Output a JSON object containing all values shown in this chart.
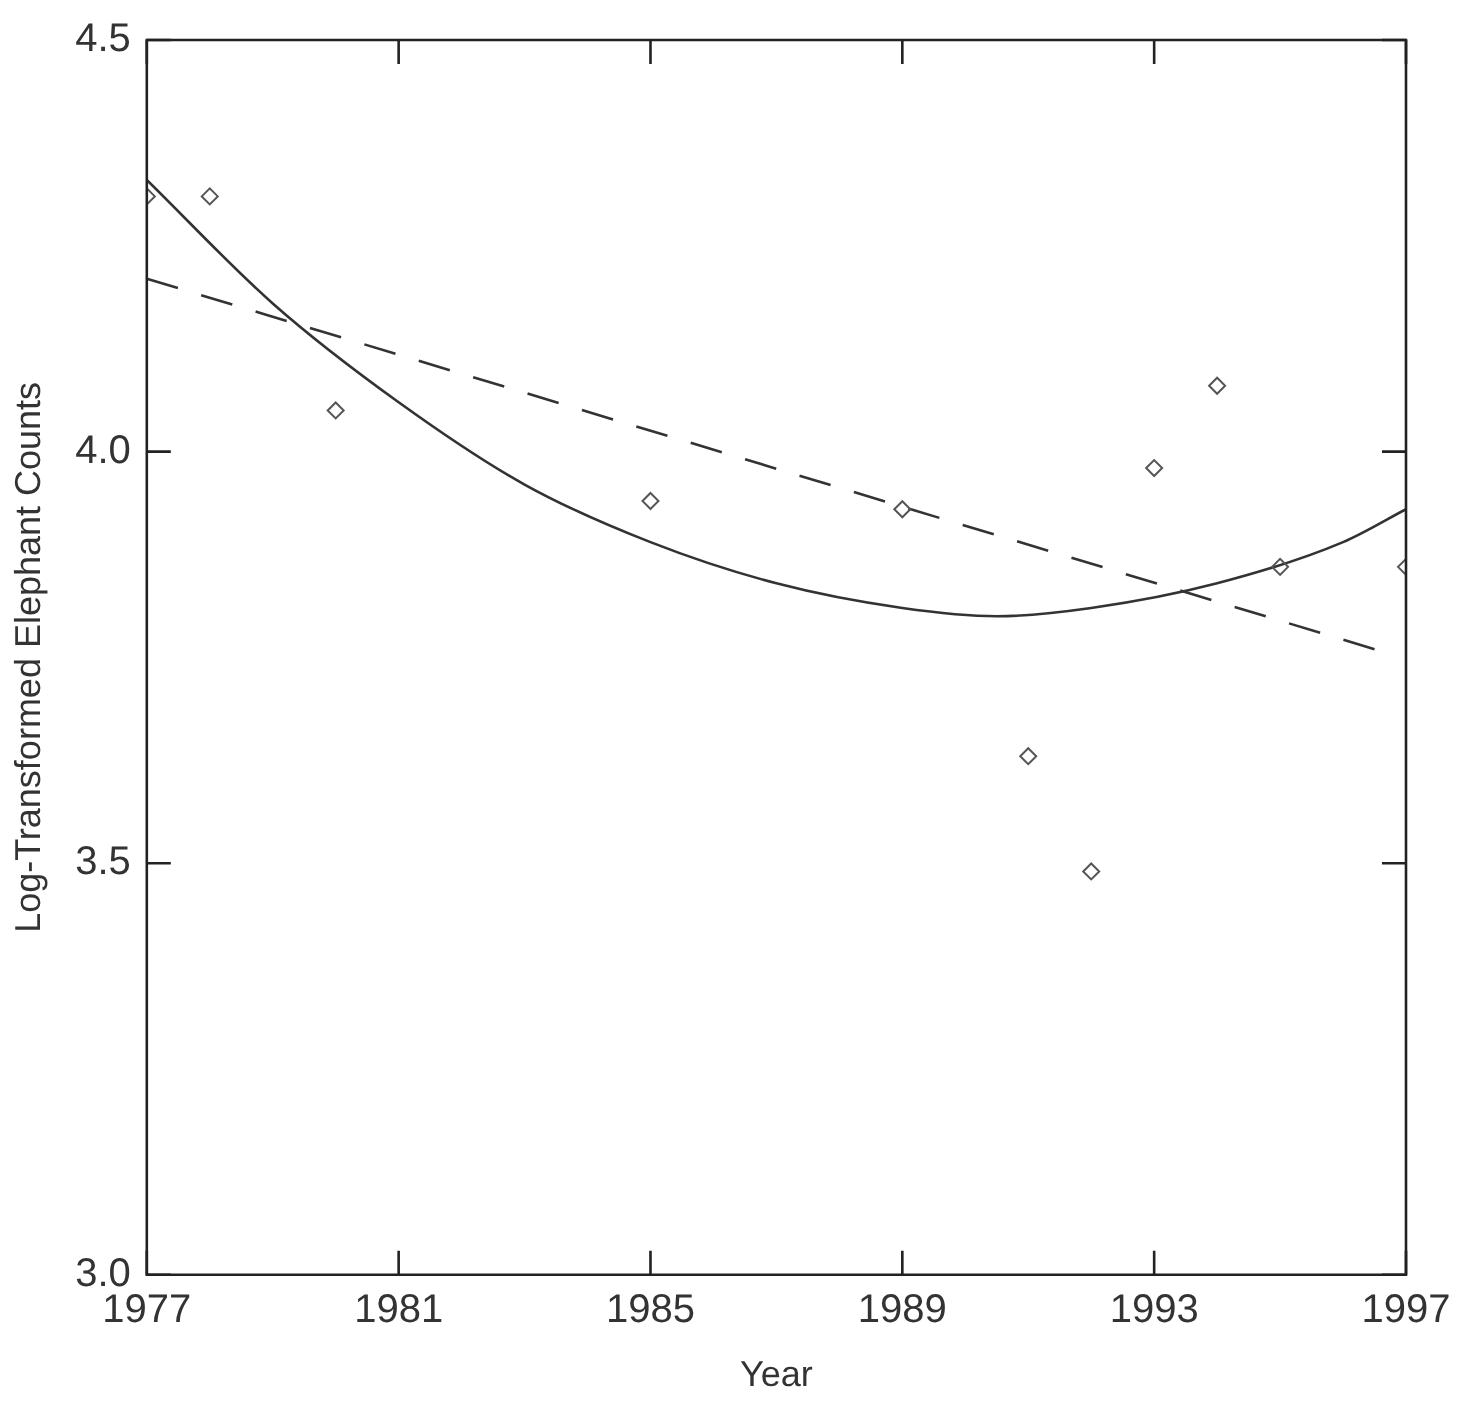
{
  "chart_data": {
    "type": "scatter",
    "xlabel": "Year",
    "ylabel": "Log-Transformed Elephant Counts",
    "marker": "diamond",
    "grid": false,
    "legend": false,
    "xlim": [
      1977,
      1997
    ],
    "xticks": [
      1977,
      1981,
      1985,
      1989,
      1993,
      1997
    ],
    "ylim": [
      3.0,
      4.5
    ],
    "yticks": [
      {
        "value": 3.0,
        "label": "3.0"
      },
      {
        "value": 3.5,
        "label": "3.5"
      },
      {
        "value": 4.0,
        "label": "4.0"
      },
      {
        "value": 4.5,
        "label": "4.5"
      }
    ],
    "series": [
      {
        "color": "#555555",
        "x": [
          1977,
          1978,
          1980,
          1985,
          1989,
          1991,
          1992,
          1993,
          1994,
          1995,
          1997
        ],
        "values": [
          4.31,
          4.31,
          4.05,
          3.94,
          3.93,
          3.63,
          3.49,
          3.98,
          4.08,
          3.86,
          3.86
        ]
      },
      {
        "type": "line",
        "line_style": "dashed",
        "marker": "none",
        "color": "#333333",
        "x": [
          1977,
          1996.5
        ],
        "values": [
          4.21,
          3.76
        ]
      },
      {
        "type": "line",
        "line_style": "solid",
        "marker": "none",
        "color": "#333333",
        "x": [
          1977,
          1979,
          1981,
          1983,
          1985,
          1987,
          1989,
          1990.5,
          1992,
          1994,
          1996,
          1997
        ],
        "values": [
          4.33,
          4.18,
          4.06,
          3.96,
          3.89,
          3.84,
          3.81,
          3.8,
          3.81,
          3.84,
          3.89,
          3.93
        ]
      }
    ]
  }
}
